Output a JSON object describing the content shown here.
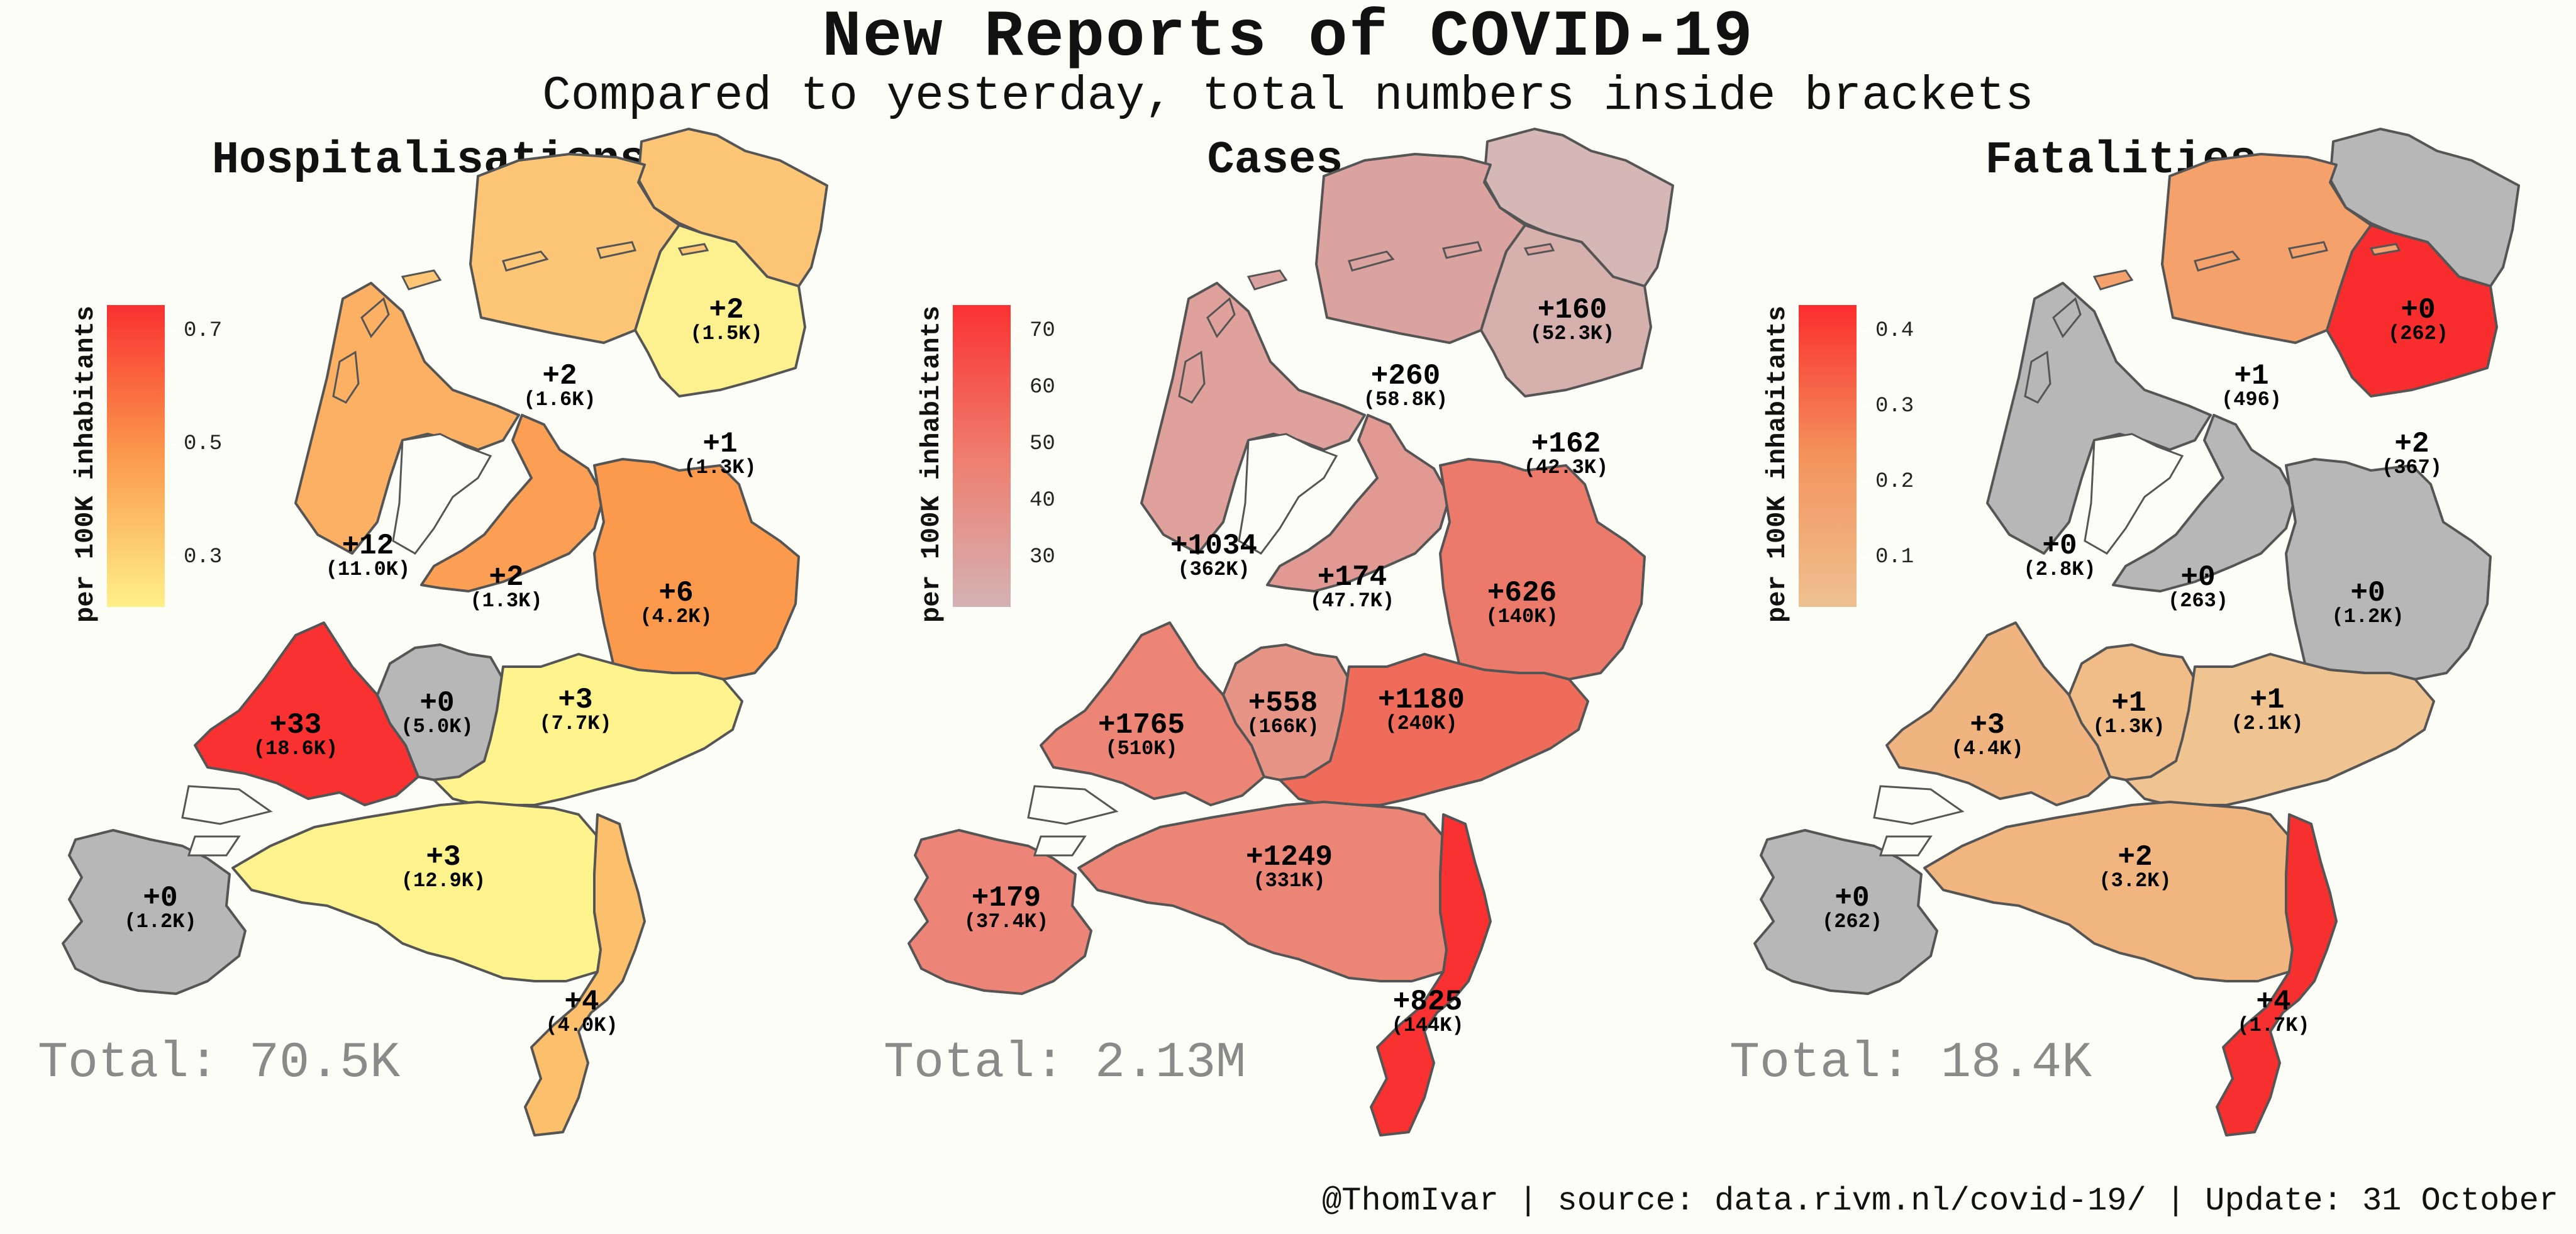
{
  "title": "New Reports of COVID-19",
  "subtitle": "Compared to yesterday, total numbers inside brackets",
  "footer": "@ThomIvar | source: data.rivm.nl/covid-19/ | Update: 31 October",
  "legend_title": "per 100K inhabitants",
  "panels": [
    {
      "title": "Hospitalisations",
      "total": "Total: 70.5K",
      "legend_ticks": [
        "0.7",
        "0.5",
        "0.3"
      ],
      "legend_colors": [
        "#f93131",
        "#fb9a4c",
        "#fef08a"
      ],
      "regions": [
        {
          "name": "Groningen",
          "main": "+2",
          "sub": "(1.5K)",
          "color": "#fdc676"
        },
        {
          "name": "Friesland",
          "main": "+2",
          "sub": "(1.6K)",
          "color": "#fdc676"
        },
        {
          "name": "Drenthe",
          "main": "+1",
          "sub": "(1.3K)",
          "color": "#fdf08f"
        },
        {
          "name": "Noord-Holland",
          "main": "+12",
          "sub": "(11.0K)",
          "color": "#fbb064"
        },
        {
          "name": "Flevoland",
          "main": "+2",
          "sub": "(1.3K)",
          "color": "#fb9f54"
        },
        {
          "name": "Overijssel",
          "main": "+6",
          "sub": "(4.2K)",
          "color": "#fb9a4c"
        },
        {
          "name": "Zuid-Holland",
          "main": "+33",
          "sub": "(18.6K)",
          "color": "#f93131"
        },
        {
          "name": "Utrecht",
          "main": "+0",
          "sub": "(5.0K)",
          "color": "#b7b7b7"
        },
        {
          "name": "Gelderland",
          "main": "+3",
          "sub": "(7.7K)",
          "color": "#fef38c"
        },
        {
          "name": "Noord-Brabant",
          "main": "+3",
          "sub": "(12.9K)",
          "color": "#fef38c"
        },
        {
          "name": "Zeeland",
          "main": "+0",
          "sub": "(1.2K)",
          "color": "#b7b7b7"
        },
        {
          "name": "Limburg",
          "main": "+4",
          "sub": "(4.0K)",
          "color": "#fcc06c"
        }
      ]
    },
    {
      "title": "Cases",
      "total": "Total: 2.13M",
      "legend_ticks": [
        "70",
        "60",
        "50",
        "40",
        "30"
      ],
      "legend_colors": [
        "#fa3232",
        "#ef7d6e",
        "#d4b2b4"
      ],
      "regions": [
        {
          "name": "Groningen",
          "main": "+160",
          "sub": "(52.3K)",
          "color": "#d5b7b6"
        },
        {
          "name": "Friesland",
          "main": "+260",
          "sub": "(58.8K)",
          "color": "#dba3a0"
        },
        {
          "name": "Drenthe",
          "main": "+162",
          "sub": "(42.3K)",
          "color": "#d6b0ad"
        },
        {
          "name": "Noord-Holland",
          "main": "+1034",
          "sub": "(362K)",
          "color": "#dea19b"
        },
        {
          "name": "Flevoland",
          "main": "+174",
          "sub": "(47.7K)",
          "color": "#e19a93"
        },
        {
          "name": "Overijssel",
          "main": "+626",
          "sub": "(140K)",
          "color": "#ec7a6a"
        },
        {
          "name": "Zuid-Holland",
          "main": "+1765",
          "sub": "(510K)",
          "color": "#ec8575"
        },
        {
          "name": "Utrecht",
          "main": "+558",
          "sub": "(166K)",
          "color": "#e69486"
        },
        {
          "name": "Gelderland",
          "main": "+1180",
          "sub": "(240K)",
          "color": "#ef6c5b"
        },
        {
          "name": "Noord-Brabant",
          "main": "+1249",
          "sub": "(331K)",
          "color": "#eb8677"
        },
        {
          "name": "Zeeland",
          "main": "+179",
          "sub": "(37.4K)",
          "color": "#ec8577"
        },
        {
          "name": "Limburg",
          "main": "+825",
          "sub": "(144K)",
          "color": "#f93131"
        }
      ]
    },
    {
      "title": "Fatalities",
      "total": "Total: 18.4K",
      "legend_ticks": [
        "0.4",
        "0.3",
        "0.2",
        "0.1"
      ],
      "legend_colors": [
        "#fa2e2e",
        "#f3935c",
        "#eec190"
      ],
      "regions": [
        {
          "name": "Groningen",
          "main": "+0",
          "sub": "(262)",
          "color": "#b7b7b7"
        },
        {
          "name": "Friesland",
          "main": "+1",
          "sub": "(496)",
          "color": "#f4a16c"
        },
        {
          "name": "Drenthe",
          "main": "+2",
          "sub": "(367)",
          "color": "#f82e2e"
        },
        {
          "name": "Noord-Holland",
          "main": "+0",
          "sub": "(2.8K)",
          "color": "#b7b7b7"
        },
        {
          "name": "Flevoland",
          "main": "+0",
          "sub": "(263)",
          "color": "#b7b7b7"
        },
        {
          "name": "Overijssel",
          "main": "+0",
          "sub": "(1.2K)",
          "color": "#b7b7b7"
        },
        {
          "name": "Zuid-Holland",
          "main": "+3",
          "sub": "(4.4K)",
          "color": "#f0b480"
        },
        {
          "name": "Utrecht",
          "main": "+1",
          "sub": "(1.3K)",
          "color": "#f0bc88"
        },
        {
          "name": "Gelderland",
          "main": "+1",
          "sub": "(2.1K)",
          "color": "#efc490"
        },
        {
          "name": "Noord-Brabant",
          "main": "+2",
          "sub": "(3.2K)",
          "color": "#f1b680"
        },
        {
          "name": "Zeeland",
          "main": "+0",
          "sub": "(262)",
          "color": "#b7b7b7"
        },
        {
          "name": "Limburg",
          "main": "+4",
          "sub": "(1.7K)",
          "color": "#f62f2f"
        }
      ]
    }
  ]
}
